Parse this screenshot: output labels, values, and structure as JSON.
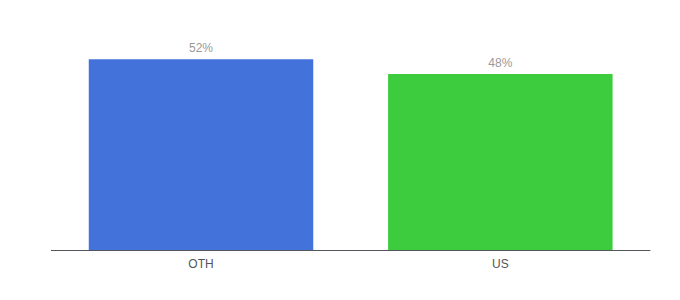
{
  "chart_data": {
    "type": "bar",
    "categories": [
      "OTH",
      "US"
    ],
    "values": [
      52,
      48
    ],
    "value_labels": [
      "52%",
      "48%"
    ],
    "colors": [
      "#4472db",
      "#3dcc3d"
    ],
    "ylim": [
      0,
      60
    ],
    "data_labels": true,
    "tick_labels": "x",
    "grid": false
  }
}
